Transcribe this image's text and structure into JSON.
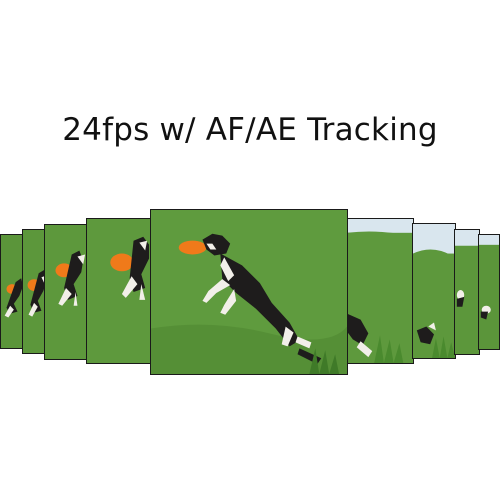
{
  "headline": "24fps w/ AF/AE Tracking",
  "colors": {
    "grass": "#5a9438",
    "sky": "#d9e6ee",
    "frisbee": "#f07a1a",
    "dog_dark": "#1e1c1c",
    "dog_light": "#f2efe9",
    "frame_border": "#1a1a1a"
  },
  "frames": [
    {
      "subject": "dog-leaping-with-frisbee"
    },
    {
      "subject": "dog-leaping-with-frisbee"
    },
    {
      "subject": "dog-leaping-with-frisbee"
    },
    {
      "subject": "dog-leaping-with-frisbee"
    },
    {
      "subject": "dog-catching-frisbee",
      "highlighted": true
    },
    {
      "subject": "dog-landing"
    },
    {
      "subject": "dog-landing"
    },
    {
      "subject": "dog-running-away"
    },
    {
      "subject": "dog-running-away"
    }
  ]
}
